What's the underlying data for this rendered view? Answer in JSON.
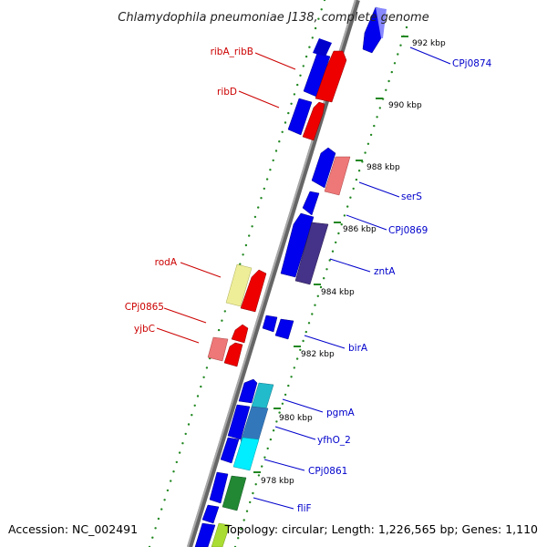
{
  "title": "Chlamydophila pneumoniae J138, complete genome",
  "footer": {
    "accession": "Accession: NC_002491",
    "topology": "Topology: circular; Length: 1,226,565 bp; Genes: 1,110"
  },
  "scale_ticks": [
    "992 kbp",
    "990 kbp",
    "988 kbp",
    "986 kbp",
    "984 kbp",
    "982 kbp",
    "980 kbp",
    "978 kbp"
  ],
  "genes_left": [
    "ribA_ribB",
    "ribD",
    "rodA",
    "CPj0865",
    "yjbC"
  ],
  "genes_right": [
    "CPj0874",
    "serS",
    "CPj0869",
    "zntA",
    "birA",
    "pgmA",
    "yfhO_2",
    "CPj0861",
    "fliF"
  ],
  "colors": {
    "left_label": "#cc0000",
    "right_label": "#0000cc",
    "forward_gene": "#0000ee",
    "reverse_gene": "#ee0000",
    "backbone": "#888888",
    "scale_dots": "#228822"
  }
}
